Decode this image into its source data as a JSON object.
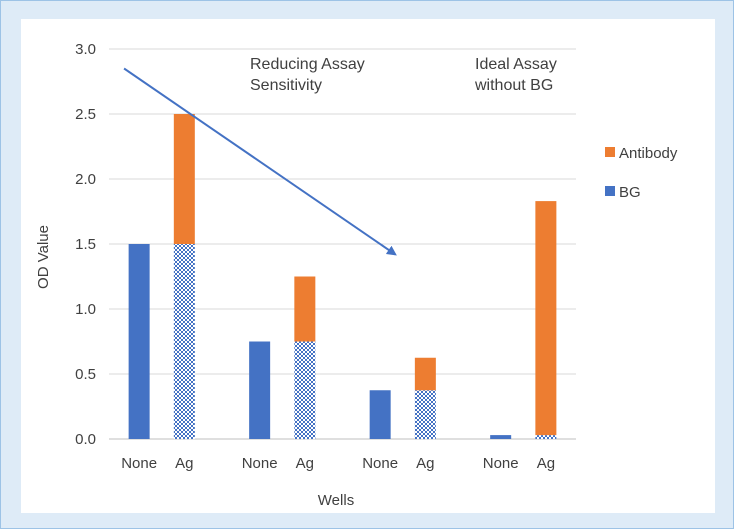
{
  "chart_data": {
    "type": "bar",
    "stacked": true,
    "xlabel": "Wells",
    "ylabel": "OD Value",
    "ylim": [
      0,
      3.0
    ],
    "yticks": [
      "0.0",
      "0.5",
      "1.0",
      "1.5",
      "2.0",
      "2.5",
      "3.0"
    ],
    "grid": true,
    "legend_position": "right",
    "groups": [
      {
        "bars": [
          {
            "label": "None",
            "bg": 1.5,
            "antibody": 0
          },
          {
            "label": "Ag",
            "bg": 1.5,
            "antibody": 1.0
          }
        ]
      },
      {
        "bars": [
          {
            "label": "None",
            "bg": 0.75,
            "antibody": 0
          },
          {
            "label": "Ag",
            "bg": 0.75,
            "antibody": 0.5
          }
        ]
      },
      {
        "bars": [
          {
            "label": "None",
            "bg": 0.375,
            "antibody": 0
          },
          {
            "label": "Ag",
            "bg": 0.375,
            "antibody": 0.25
          }
        ]
      },
      {
        "bars": [
          {
            "label": "None",
            "bg": 0.03,
            "antibody": 0
          },
          {
            "label": "Ag",
            "bg": 0.03,
            "antibody": 1.8
          }
        ]
      }
    ],
    "series": [
      {
        "name": "Antibody",
        "color": "#ed7d31"
      },
      {
        "name": "BG",
        "color": "#4472c4"
      }
    ],
    "annotations": [
      {
        "lines": [
          "Reducing Assay",
          "Sensitivity"
        ]
      },
      {
        "lines": [
          "Ideal Assay",
          "without BG"
        ]
      }
    ],
    "arrow": {
      "from": [
        0.5,
        2.85
      ],
      "to": [
        9.5,
        1.42
      ],
      "color": "#4472c4"
    }
  }
}
